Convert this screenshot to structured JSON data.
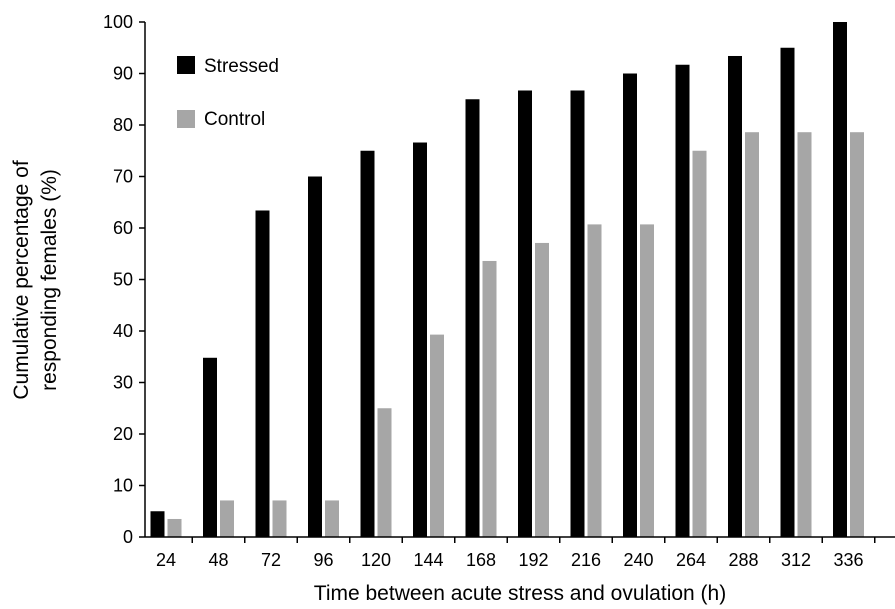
{
  "chart_data": {
    "type": "bar",
    "categories": [
      "24",
      "48",
      "72",
      "96",
      "120",
      "144",
      "168",
      "192",
      "216",
      "240",
      "264",
      "288",
      "312",
      "336"
    ],
    "series": [
      {
        "name": "Stressed",
        "color": "#000000",
        "values": [
          5,
          34.8,
          63.4,
          70,
          75,
          76.6,
          85,
          86.7,
          86.7,
          90,
          91.7,
          93.4,
          95,
          100
        ]
      },
      {
        "name": "Control",
        "color": "#a6a6a6",
        "values": [
          3.5,
          7.1,
          7.1,
          7.1,
          25,
          39.3,
          53.6,
          57.1,
          60.7,
          60.7,
          75,
          78.6,
          78.6,
          78.6
        ]
      }
    ],
    "xlabel": "Time between acute stress and ovulation (h)",
    "ylabel_line1": "Cumulative percentage of",
    "ylabel_line2": "responding females (%)",
    "ylim": [
      0,
      100
    ],
    "yticks": [
      "0",
      "10",
      "20",
      "30",
      "40",
      "50",
      "60",
      "70",
      "80",
      "90",
      "100"
    ],
    "grid": false,
    "legend_position": "top-left"
  }
}
